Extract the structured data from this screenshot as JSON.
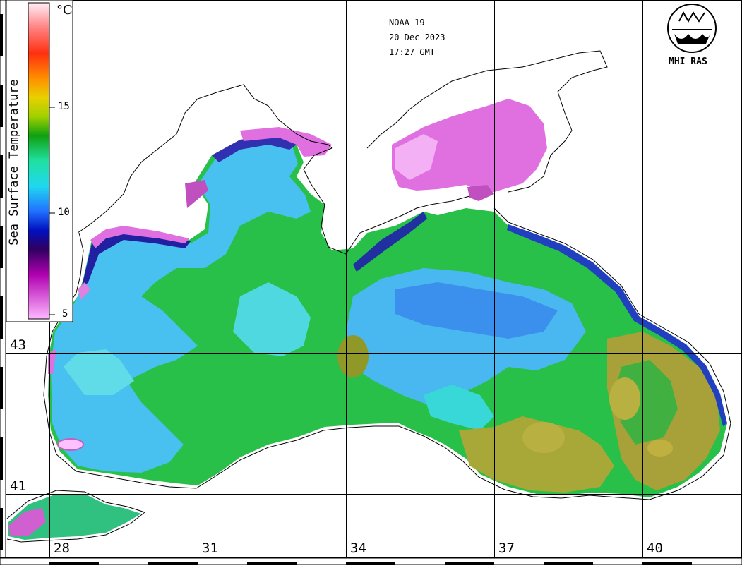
{
  "satellite": "NOAA-19",
  "date": "20 Dec 2023",
  "time": "17:27 GMT",
  "organization": "MHI RAS",
  "colorbar": {
    "title": "Sea Surface Temperature",
    "unit": "°C",
    "ticks": [
      "15",
      "10",
      "5"
    ],
    "colors": [
      "#ffe8f4",
      "#ff2020",
      "#ffb000",
      "#e0e000",
      "#90d000",
      "#10a000",
      "#20e080",
      "#20e8e8",
      "#2080ff",
      "#0000c0",
      "#400060",
      "#c000c0",
      "#ff90ff"
    ]
  },
  "grid": {
    "latitude_labels": [
      "43",
      "41"
    ],
    "longitude_labels": [
      "28",
      "31",
      "34",
      "37",
      "40"
    ]
  },
  "map_colors": {
    "cold_magenta": "#e070e0",
    "dark_blue": "#2030a0",
    "cyan_blue": "#40b8f0",
    "light_cyan": "#60e0e8",
    "green": "#20b840",
    "olive": "#a0a030",
    "coast": "#000000"
  }
}
